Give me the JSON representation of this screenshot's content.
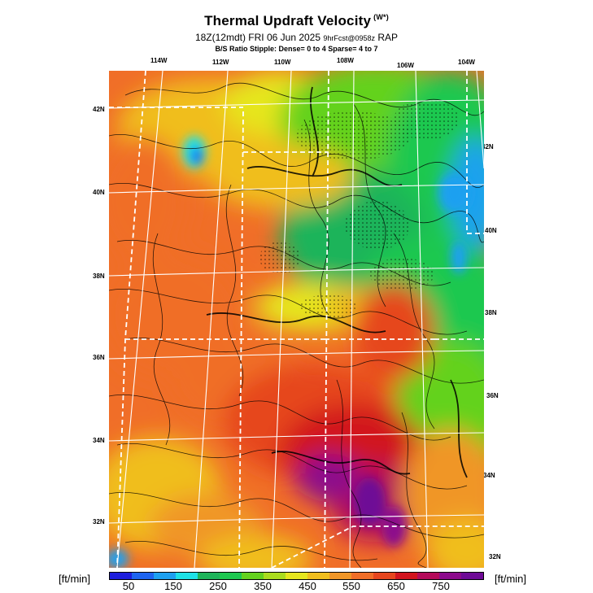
{
  "header": {
    "title": "Thermal Updraft Velocity",
    "title_unit": "(W*)",
    "subtitle_main": "18Z(12mdt) FRI 06 Jun 2025",
    "subtitle_fcst": "9hrFcst@0958z",
    "subtitle_model": "RAP",
    "stipple_note": "B/S Ratio Stipple:  Dense= 0 to 4  Sparse= 4 to 7"
  },
  "map": {
    "lon_labels_top": [
      "114W",
      "112W",
      "110W",
      "108W",
      "106W",
      "104W"
    ],
    "lat_labels_left": [
      "42N",
      "40N",
      "38N",
      "36N",
      "34N",
      "32N"
    ],
    "lat_labels_right": [
      "42N",
      "40N",
      "38N",
      "36N",
      "34N",
      "32N"
    ]
  },
  "colorbar": {
    "unit_left": "[ft/min]",
    "unit_right": "[ft/min]",
    "tick_labels": [
      "50",
      "150",
      "250",
      "350",
      "450",
      "550",
      "650",
      "750"
    ],
    "colors": [
      "#1e1edc",
      "#1e64f0",
      "#1ea0f0",
      "#1ee1e6",
      "#1eb45a",
      "#1ec850",
      "#64d21e",
      "#aadc1e",
      "#e6e61e",
      "#f0be1e",
      "#f09628",
      "#f06e28",
      "#e6461e",
      "#d2141e",
      "#b40a5a",
      "#8c0a8c",
      "#6e0a96"
    ]
  }
}
